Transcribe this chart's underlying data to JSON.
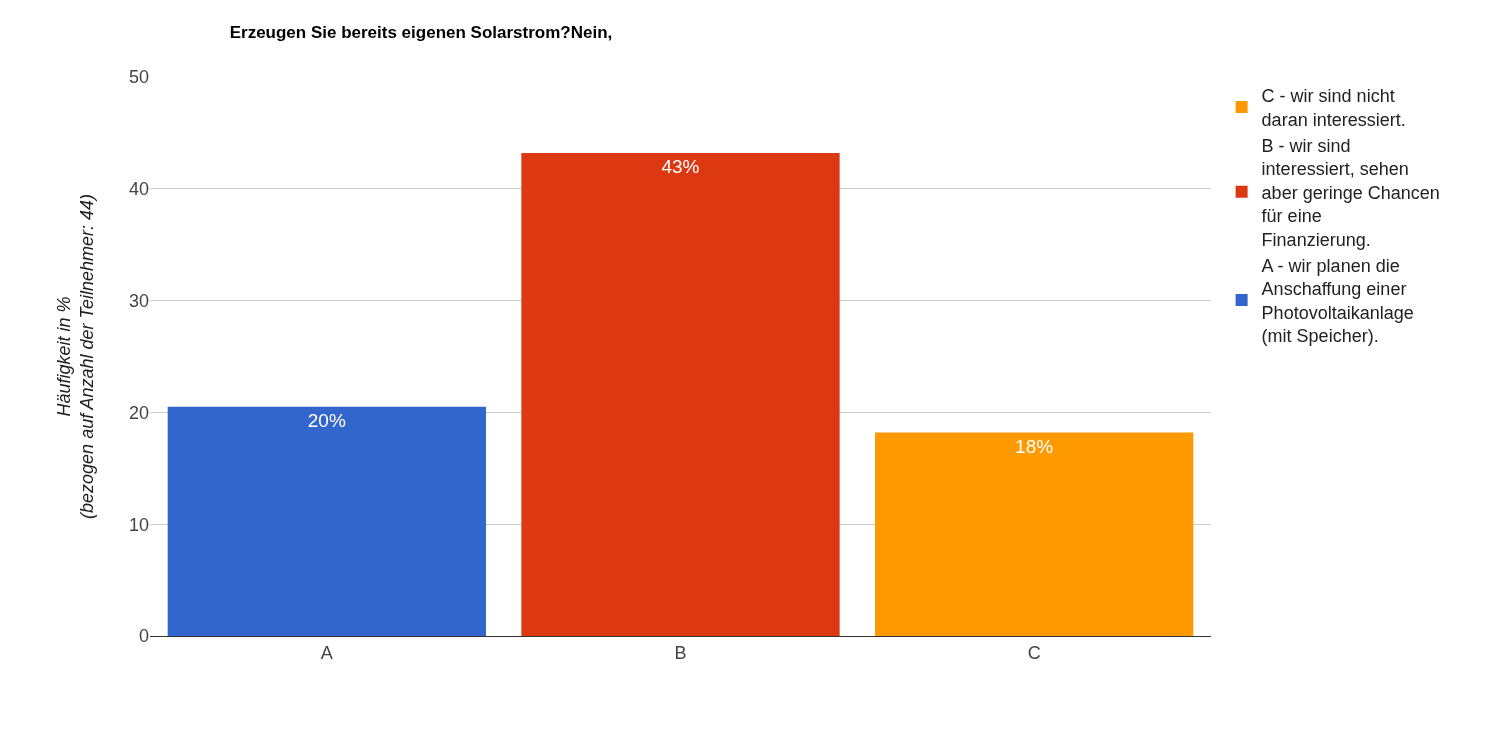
{
  "chart_data": {
    "type": "bar",
    "title": "Erzeugen Sie bereits eigenen Solarstrom?Nein,",
    "ylabel": "Häufigkeit in %\n(bezogen auf Anzahl der Teilnehmer: 44)",
    "categories": [
      "A",
      "B",
      "C"
    ],
    "series": [
      {
        "name": "A - wir planen die Anschaffung einer Photovoltaikanlage (mit Speicher).",
        "color": "#3366cc",
        "values": [
          20.5,
          null,
          null
        ],
        "value_labels": [
          "20%",
          null,
          null
        ]
      },
      {
        "name": "B - wir sind interessiert, sehen aber geringe Chancen für eine Finanzierung.",
        "color": "#dc3912",
        "values": [
          null,
          43.2,
          null
        ],
        "value_labels": [
          null,
          "43%",
          null
        ]
      },
      {
        "name": "C - wir sind nicht daran interessiert.",
        "color": "#ff9900",
        "values": [
          null,
          null,
          18.2
        ],
        "value_labels": [
          null,
          null,
          "18%"
        ]
      }
    ],
    "ylim": [
      0,
      50
    ],
    "yticks": [
      0,
      10,
      20,
      30,
      40,
      50
    ],
    "grid": "y",
    "legend": "top right"
  }
}
